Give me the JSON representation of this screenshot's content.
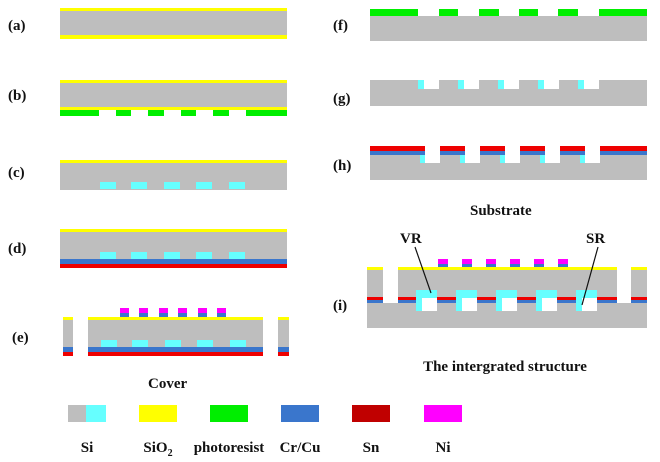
{
  "colors": {
    "si": "#bebebe",
    "si_doped": "#66ffff",
    "sio2": "#ffff00",
    "photoresist": "#00ee00",
    "crcu": "#3a76cc",
    "sn_red": "#ee0000",
    "sn": "#c00000",
    "ni": "#ff00ff"
  },
  "steps": {
    "a": "(a)",
    "b": "(b)",
    "c": "(c)",
    "d": "(d)",
    "e": "(e)",
    "f": "(f)",
    "g": "(g)",
    "h": "(h)",
    "i": "(i)"
  },
  "captions": {
    "cover": "Cover",
    "substrate": "Substrate",
    "integrated": "The intergrated structure"
  },
  "annotations": {
    "vr": "VR",
    "sr": "SR"
  },
  "legend": [
    {
      "label": "Si",
      "color": "#bebebe",
      "color2": "#66ffff"
    },
    {
      "label": "SiO",
      "sub": "2",
      "color": "#ffff00"
    },
    {
      "label": "photoresist",
      "color": "#00ee00"
    },
    {
      "label": "Cr/Cu",
      "color": "#3a76cc"
    },
    {
      "label": "Sn",
      "color": "#c00000"
    },
    {
      "label": "Ni",
      "color": "#ff00ff"
    }
  ]
}
